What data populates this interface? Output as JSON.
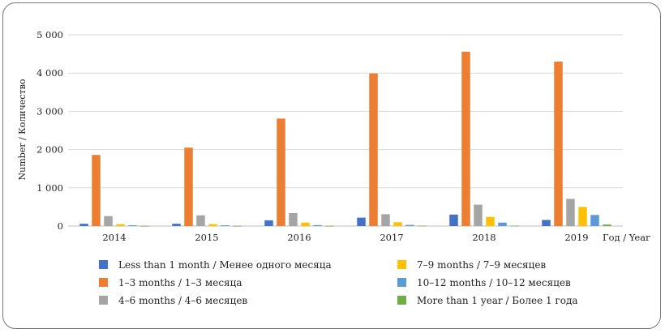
{
  "chart_data": {
    "type": "bar",
    "title": "",
    "ylabel": "Number / Количество",
    "xlabel": "Год / Year",
    "categories": [
      "2014",
      "2015",
      "2016",
      "2017",
      "2018",
      "2019"
    ],
    "ylim": [
      0,
      5000
    ],
    "yticks": [
      0,
      1000,
      2000,
      3000,
      4000,
      5000
    ],
    "ytick_labels": [
      "0",
      "1 000",
      "2 000",
      "3 000",
      "4 000",
      "5 000"
    ],
    "grid": true,
    "legend_position": "bottom",
    "series": [
      {
        "name": "Less than 1 month / Менее одного месяца",
        "color": "#4472C4",
        "values": [
          60,
          60,
          150,
          220,
          300,
          160
        ]
      },
      {
        "name": "1–3 months / 1–3 месяца",
        "color": "#ED7D31",
        "values": [
          1860,
          2050,
          2810,
          3990,
          4560,
          4300
        ]
      },
      {
        "name": "4–6 months / 4–6 месяцев",
        "color": "#A5A5A5",
        "values": [
          260,
          280,
          340,
          310,
          560,
          710
        ]
      },
      {
        "name": "7–9 months / 7–9 месяцев",
        "color": "#FFC000",
        "values": [
          50,
          50,
          90,
          100,
          240,
          500
        ]
      },
      {
        "name": "10–12 months / 10–12 месяцев",
        "color": "#5B9BD5",
        "values": [
          20,
          20,
          25,
          30,
          90,
          290
        ]
      },
      {
        "name": "More than 1 year / Более 1 года",
        "color": "#70AD47",
        "values": [
          5,
          5,
          5,
          10,
          10,
          40
        ]
      }
    ]
  }
}
